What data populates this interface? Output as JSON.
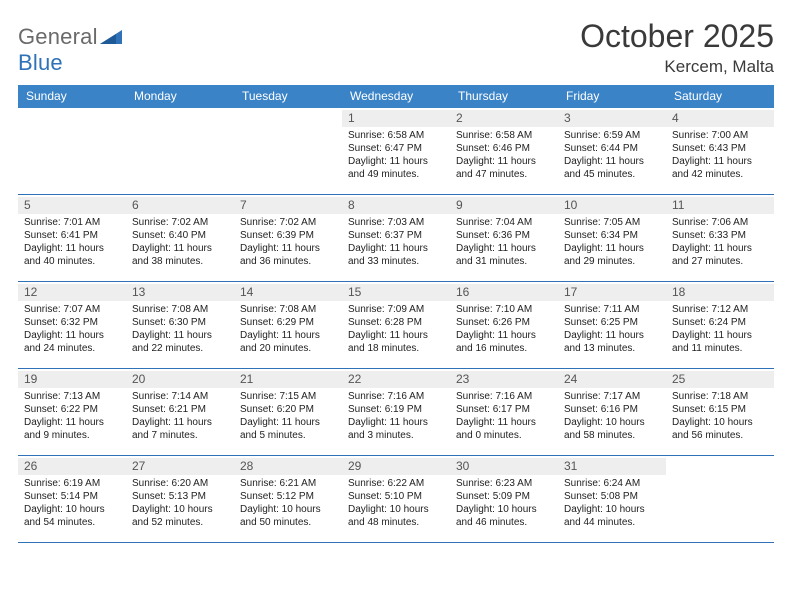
{
  "logo": {
    "word1": "General",
    "word2": "Blue"
  },
  "title": {
    "month": "October 2025",
    "location": "Kercem, Malta"
  },
  "colors": {
    "header_bg": "#3b83c7",
    "header_text": "#ffffff",
    "daynum_bg": "#eeeeee",
    "rule": "#2f72b8",
    "logo_gray": "#6a6a6a",
    "logo_blue": "#2f72b8"
  },
  "day_labels": [
    "Sunday",
    "Monday",
    "Tuesday",
    "Wednesday",
    "Thursday",
    "Friday",
    "Saturday"
  ],
  "weeks": [
    [
      {
        "n": "",
        "lines": []
      },
      {
        "n": "",
        "lines": []
      },
      {
        "n": "",
        "lines": []
      },
      {
        "n": "1",
        "lines": [
          "Sunrise: 6:58 AM",
          "Sunset: 6:47 PM",
          "Daylight: 11 hours and 49 minutes."
        ]
      },
      {
        "n": "2",
        "lines": [
          "Sunrise: 6:58 AM",
          "Sunset: 6:46 PM",
          "Daylight: 11 hours and 47 minutes."
        ]
      },
      {
        "n": "3",
        "lines": [
          "Sunrise: 6:59 AM",
          "Sunset: 6:44 PM",
          "Daylight: 11 hours and 45 minutes."
        ]
      },
      {
        "n": "4",
        "lines": [
          "Sunrise: 7:00 AM",
          "Sunset: 6:43 PM",
          "Daylight: 11 hours and 42 minutes."
        ]
      }
    ],
    [
      {
        "n": "5",
        "lines": [
          "Sunrise: 7:01 AM",
          "Sunset: 6:41 PM",
          "Daylight: 11 hours and 40 minutes."
        ]
      },
      {
        "n": "6",
        "lines": [
          "Sunrise: 7:02 AM",
          "Sunset: 6:40 PM",
          "Daylight: 11 hours and 38 minutes."
        ]
      },
      {
        "n": "7",
        "lines": [
          "Sunrise: 7:02 AM",
          "Sunset: 6:39 PM",
          "Daylight: 11 hours and 36 minutes."
        ]
      },
      {
        "n": "8",
        "lines": [
          "Sunrise: 7:03 AM",
          "Sunset: 6:37 PM",
          "Daylight: 11 hours and 33 minutes."
        ]
      },
      {
        "n": "9",
        "lines": [
          "Sunrise: 7:04 AM",
          "Sunset: 6:36 PM",
          "Daylight: 11 hours and 31 minutes."
        ]
      },
      {
        "n": "10",
        "lines": [
          "Sunrise: 7:05 AM",
          "Sunset: 6:34 PM",
          "Daylight: 11 hours and 29 minutes."
        ]
      },
      {
        "n": "11",
        "lines": [
          "Sunrise: 7:06 AM",
          "Sunset: 6:33 PM",
          "Daylight: 11 hours and 27 minutes."
        ]
      }
    ],
    [
      {
        "n": "12",
        "lines": [
          "Sunrise: 7:07 AM",
          "Sunset: 6:32 PM",
          "Daylight: 11 hours and 24 minutes."
        ]
      },
      {
        "n": "13",
        "lines": [
          "Sunrise: 7:08 AM",
          "Sunset: 6:30 PM",
          "Daylight: 11 hours and 22 minutes."
        ]
      },
      {
        "n": "14",
        "lines": [
          "Sunrise: 7:08 AM",
          "Sunset: 6:29 PM",
          "Daylight: 11 hours and 20 minutes."
        ]
      },
      {
        "n": "15",
        "lines": [
          "Sunrise: 7:09 AM",
          "Sunset: 6:28 PM",
          "Daylight: 11 hours and 18 minutes."
        ]
      },
      {
        "n": "16",
        "lines": [
          "Sunrise: 7:10 AM",
          "Sunset: 6:26 PM",
          "Daylight: 11 hours and 16 minutes."
        ]
      },
      {
        "n": "17",
        "lines": [
          "Sunrise: 7:11 AM",
          "Sunset: 6:25 PM",
          "Daylight: 11 hours and 13 minutes."
        ]
      },
      {
        "n": "18",
        "lines": [
          "Sunrise: 7:12 AM",
          "Sunset: 6:24 PM",
          "Daylight: 11 hours and 11 minutes."
        ]
      }
    ],
    [
      {
        "n": "19",
        "lines": [
          "Sunrise: 7:13 AM",
          "Sunset: 6:22 PM",
          "Daylight: 11 hours and 9 minutes."
        ]
      },
      {
        "n": "20",
        "lines": [
          "Sunrise: 7:14 AM",
          "Sunset: 6:21 PM",
          "Daylight: 11 hours and 7 minutes."
        ]
      },
      {
        "n": "21",
        "lines": [
          "Sunrise: 7:15 AM",
          "Sunset: 6:20 PM",
          "Daylight: 11 hours and 5 minutes."
        ]
      },
      {
        "n": "22",
        "lines": [
          "Sunrise: 7:16 AM",
          "Sunset: 6:19 PM",
          "Daylight: 11 hours and 3 minutes."
        ]
      },
      {
        "n": "23",
        "lines": [
          "Sunrise: 7:16 AM",
          "Sunset: 6:17 PM",
          "Daylight: 11 hours and 0 minutes."
        ]
      },
      {
        "n": "24",
        "lines": [
          "Sunrise: 7:17 AM",
          "Sunset: 6:16 PM",
          "Daylight: 10 hours and 58 minutes."
        ]
      },
      {
        "n": "25",
        "lines": [
          "Sunrise: 7:18 AM",
          "Sunset: 6:15 PM",
          "Daylight: 10 hours and 56 minutes."
        ]
      }
    ],
    [
      {
        "n": "26",
        "lines": [
          "Sunrise: 6:19 AM",
          "Sunset: 5:14 PM",
          "Daylight: 10 hours and 54 minutes."
        ]
      },
      {
        "n": "27",
        "lines": [
          "Sunrise: 6:20 AM",
          "Sunset: 5:13 PM",
          "Daylight: 10 hours and 52 minutes."
        ]
      },
      {
        "n": "28",
        "lines": [
          "Sunrise: 6:21 AM",
          "Sunset: 5:12 PM",
          "Daylight: 10 hours and 50 minutes."
        ]
      },
      {
        "n": "29",
        "lines": [
          "Sunrise: 6:22 AM",
          "Sunset: 5:10 PM",
          "Daylight: 10 hours and 48 minutes."
        ]
      },
      {
        "n": "30",
        "lines": [
          "Sunrise: 6:23 AM",
          "Sunset: 5:09 PM",
          "Daylight: 10 hours and 46 minutes."
        ]
      },
      {
        "n": "31",
        "lines": [
          "Sunrise: 6:24 AM",
          "Sunset: 5:08 PM",
          "Daylight: 10 hours and 44 minutes."
        ]
      },
      {
        "n": "",
        "lines": []
      }
    ]
  ]
}
